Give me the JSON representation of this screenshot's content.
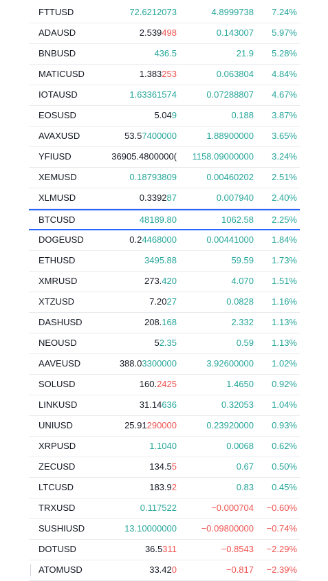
{
  "colors": {
    "positive": "#26a69a",
    "negative": "#ef5350",
    "neutral": "#131722",
    "selected_border": "#2962ff",
    "row_divider": "#e9ecef"
  },
  "rows": [
    {
      "symbol": "FTTUSD",
      "last_a": "",
      "last_b": "72.6212073",
      "last_b_dir": "up",
      "change": "4.8999738",
      "pct": "7.24%",
      "dir": "up"
    },
    {
      "symbol": "ADAUSD",
      "last_a": "2.539",
      "last_b": "498",
      "last_b_dir": "down",
      "change": "0.143007",
      "pct": "5.97%",
      "dir": "up"
    },
    {
      "symbol": "BNBUSD",
      "last_a": "",
      "last_b": "436.5",
      "last_b_dir": "up",
      "change": "21.9",
      "pct": "5.28%",
      "dir": "up"
    },
    {
      "symbol": "MATICUSD",
      "last_a": "1.383",
      "last_b": "253",
      "last_b_dir": "down",
      "change": "0.063804",
      "pct": "4.84%",
      "dir": "up"
    },
    {
      "symbol": "IOTAUSD",
      "last_a": "",
      "last_b": "1.63361574",
      "last_b_dir": "up",
      "change": "0.07288807",
      "pct": "4.67%",
      "dir": "up"
    },
    {
      "symbol": "EOSUSD",
      "last_a": "5.04",
      "last_b": "9",
      "last_b_dir": "up",
      "change": "0.188",
      "pct": "3.87%",
      "dir": "up"
    },
    {
      "symbol": "AVAXUSD",
      "last_a": "53.5",
      "last_b": "7400000",
      "last_b_dir": "up",
      "change": "1.88900000",
      "pct": "3.65%",
      "dir": "up"
    },
    {
      "symbol": "YFIUSD",
      "last_a": "36905.4800000(",
      "last_b": "",
      "last_b_dir": "up",
      "change": "1158.09000000",
      "pct": "3.24%",
      "dir": "up"
    },
    {
      "symbol": "XEMUSD",
      "last_a": "",
      "last_b": "0.18793809",
      "last_b_dir": "up",
      "change": "0.00460202",
      "pct": "2.51%",
      "dir": "up"
    },
    {
      "symbol": "XLMUSD",
      "last_a": "0.3392",
      "last_b": "87",
      "last_b_dir": "up",
      "change": "0.007940",
      "pct": "2.40%",
      "dir": "up"
    },
    {
      "symbol": "BTCUSD",
      "last_a": "",
      "last_b": "48189.80",
      "last_b_dir": "up",
      "change": "1062.58",
      "pct": "2.25%",
      "dir": "up",
      "selected": true
    },
    {
      "symbol": "DOGEUSD",
      "last_a": "0.2",
      "last_b": "4468000",
      "last_b_dir": "up",
      "change": "0.00441000",
      "pct": "1.84%",
      "dir": "up"
    },
    {
      "symbol": "ETHUSD",
      "last_a": "",
      "last_b": "3495.88",
      "last_b_dir": "up",
      "change": "59.59",
      "pct": "1.73%",
      "dir": "up"
    },
    {
      "symbol": "XMRUSD",
      "last_a": "273.",
      "last_b": "420",
      "last_b_dir": "up",
      "change": "4.070",
      "pct": "1.51%",
      "dir": "up"
    },
    {
      "symbol": "XTZUSD",
      "last_a": "7.20",
      "last_b": "27",
      "last_b_dir": "up",
      "change": "0.0828",
      "pct": "1.16%",
      "dir": "up"
    },
    {
      "symbol": "DASHUSD",
      "last_a": "208.",
      "last_b": "168",
      "last_b_dir": "up",
      "change": "2.332",
      "pct": "1.13%",
      "dir": "up"
    },
    {
      "symbol": "NEOUSD",
      "last_a": "5",
      "last_b": "2.35",
      "last_b_dir": "up",
      "change": "0.59",
      "pct": "1.13%",
      "dir": "up"
    },
    {
      "symbol": "AAVEUSD",
      "last_a": "388.0",
      "last_b": "3300000",
      "last_b_dir": "up",
      "change": "3.92600000",
      "pct": "1.02%",
      "dir": "up"
    },
    {
      "symbol": "SOLUSD",
      "last_a": "160.",
      "last_b": "2425",
      "last_b_dir": "down",
      "change": "1.4650",
      "pct": "0.92%",
      "dir": "up"
    },
    {
      "symbol": "LINKUSD",
      "last_a": "31.14",
      "last_b": "636",
      "last_b_dir": "up",
      "change": "0.32053",
      "pct": "1.04%",
      "dir": "up"
    },
    {
      "symbol": "UNIUSD",
      "last_a": "25.91",
      "last_b": "290000",
      "last_b_dir": "down",
      "change": "0.23920000",
      "pct": "0.93%",
      "dir": "up"
    },
    {
      "symbol": "XRPUSD",
      "last_a": "",
      "last_b": "1.1040",
      "last_b_dir": "up",
      "change": "0.0068",
      "pct": "0.62%",
      "dir": "up"
    },
    {
      "symbol": "ZECUSD",
      "last_a": "134.5",
      "last_b": "5",
      "last_b_dir": "down",
      "change": "0.67",
      "pct": "0.50%",
      "dir": "up"
    },
    {
      "symbol": "LTCUSD",
      "last_a": "183.9",
      "last_b": "2",
      "last_b_dir": "down",
      "change": "0.83",
      "pct": "0.45%",
      "dir": "up"
    },
    {
      "symbol": "TRXUSD",
      "last_a": "",
      "last_b": "0.117522",
      "last_b_dir": "up",
      "change": "−0.000704",
      "pct": "−0.60%",
      "dir": "down"
    },
    {
      "symbol": "SUSHIUSD",
      "last_a": "",
      "last_b": "13.10000000",
      "last_b_dir": "up",
      "change": "−0.09800000",
      "pct": "−0.74%",
      "dir": "down"
    },
    {
      "symbol": "DOTUSD",
      "last_a": "36.5",
      "last_b": "311",
      "last_b_dir": "down",
      "change": "−0.8543",
      "pct": "−2.29%",
      "dir": "down"
    },
    {
      "symbol": "ATOMUSD",
      "last_a": "33.42",
      "last_b": "0",
      "last_b_dir": "down",
      "change": "−0.817",
      "pct": "−2.39%",
      "dir": "down"
    }
  ]
}
